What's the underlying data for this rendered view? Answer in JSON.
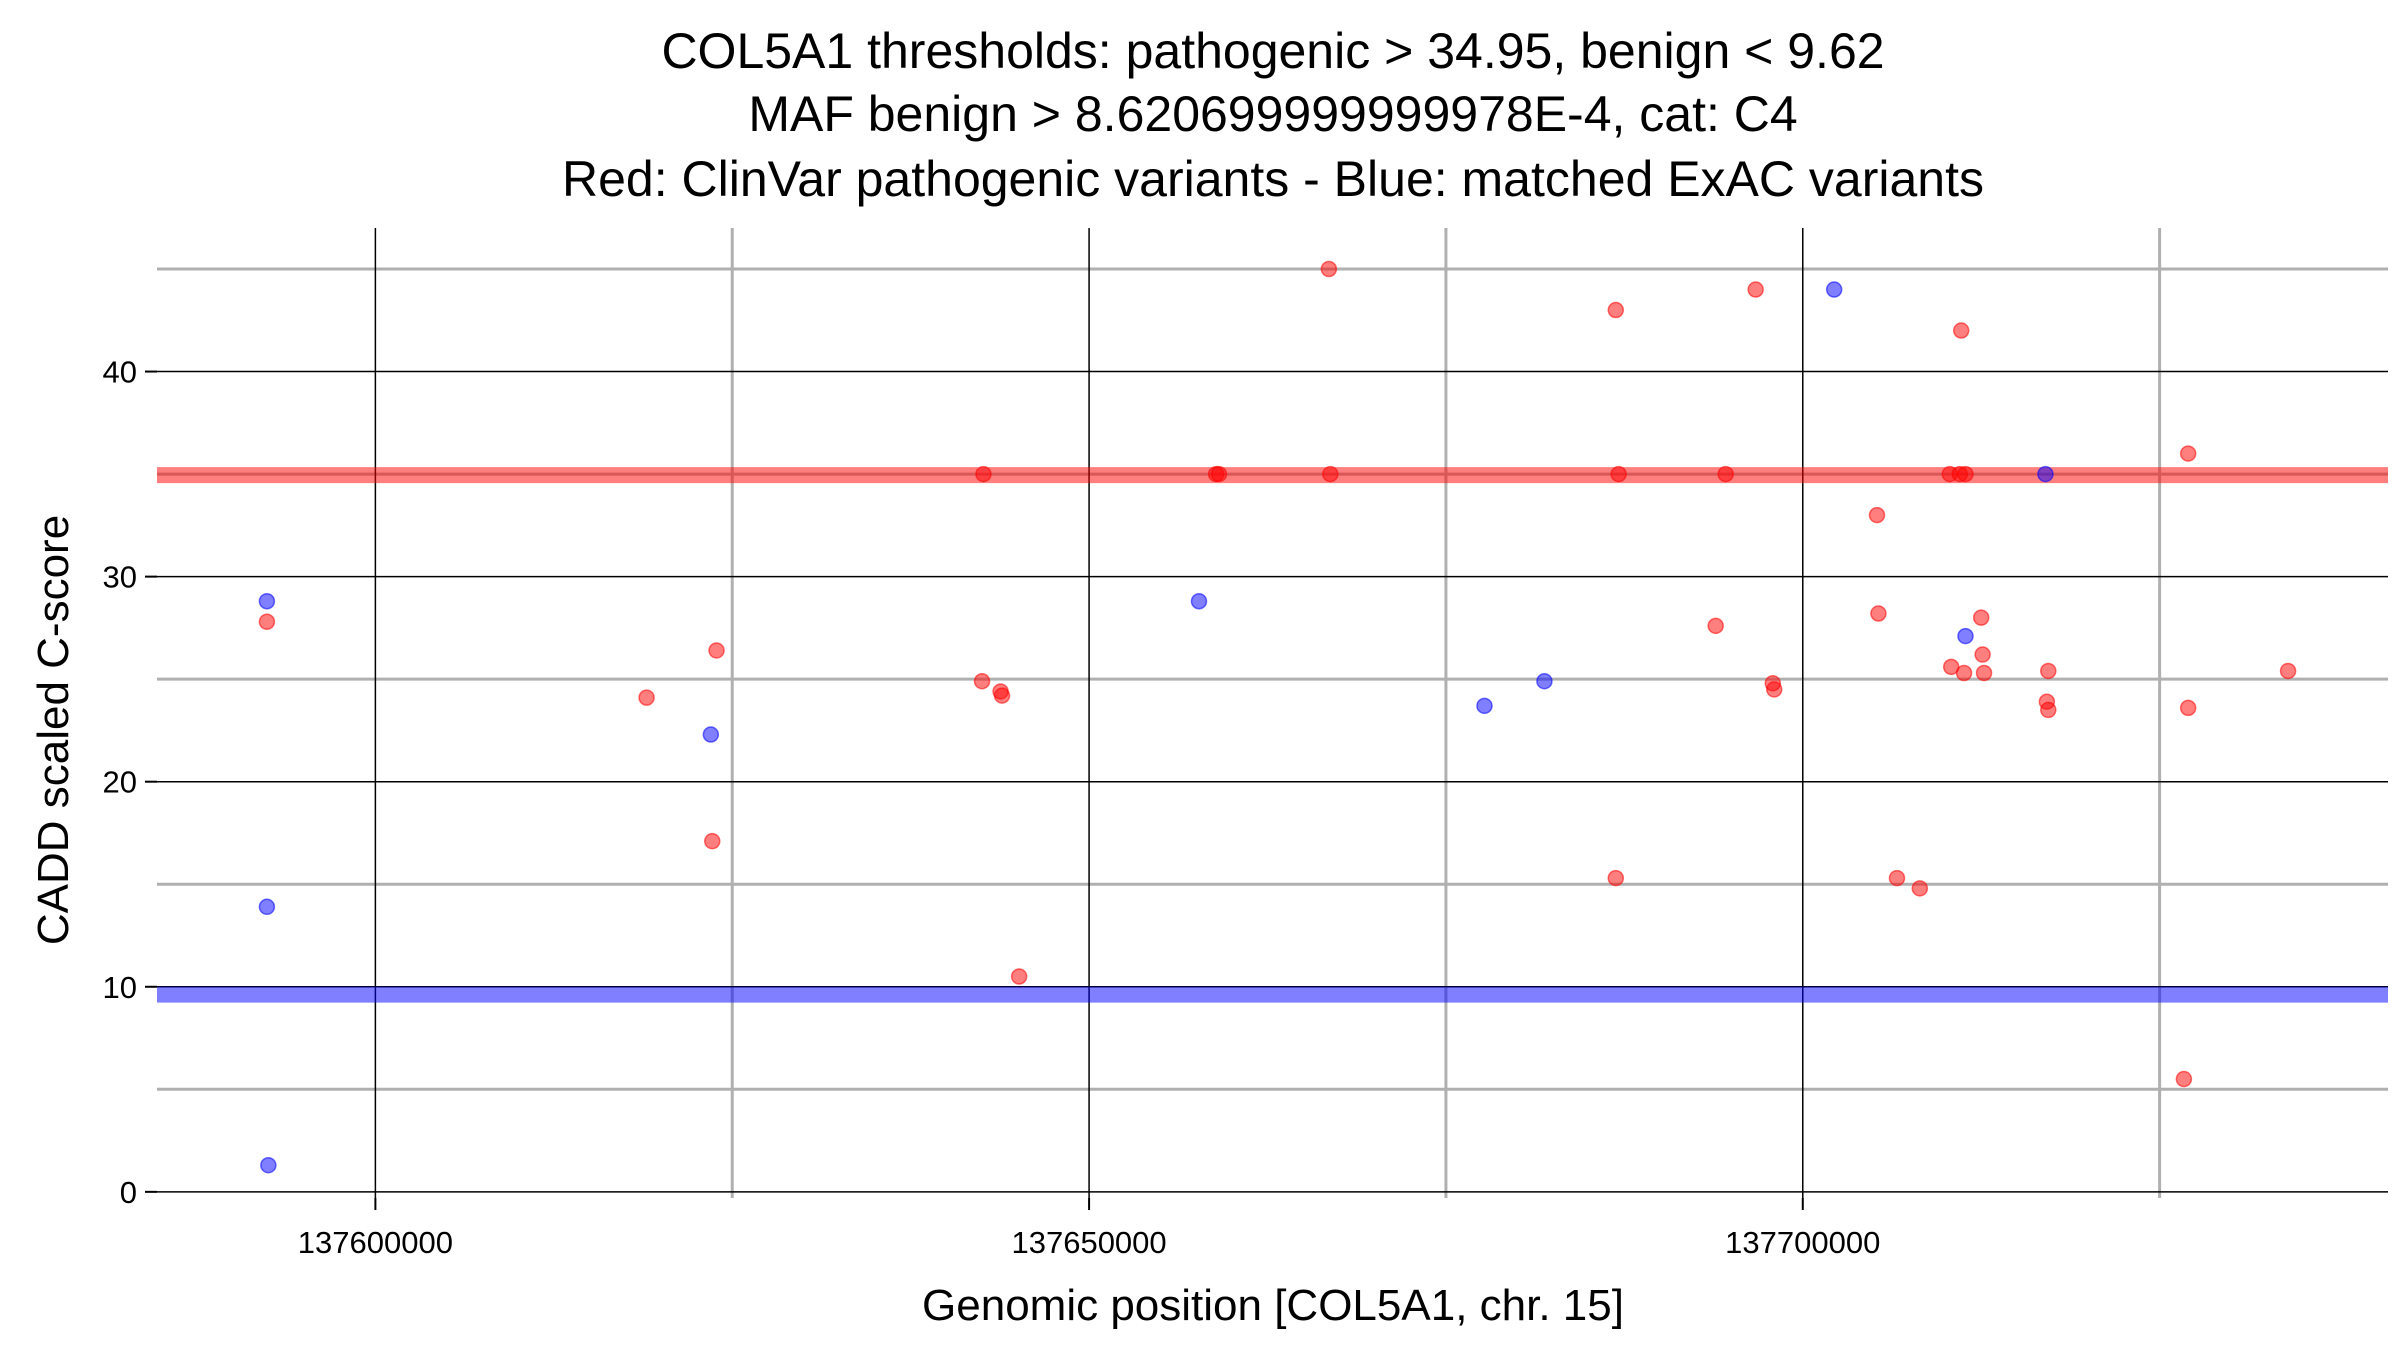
{
  "chart_data": {
    "type": "scatter",
    "title_lines": [
      "COL5A1 thresholds: pathogenic > 34.95, benign < 9.62",
      "MAF benign > 8.620699999999978E-4, cat: C4",
      "Red: ClinVar pathogenic variants - Blue: matched ExAC variants"
    ],
    "xlabel": "Genomic position [COL5A1, chr. 15]",
    "ylabel": "CADD scaled C-score",
    "xlim": [
      137584700,
      137741000
    ],
    "ylim": [
      -0.3,
      47
    ],
    "x_ticks": [
      137600000,
      137650000,
      137700000
    ],
    "x_tick_labels": [
      "137600000",
      "137650000",
      "137700000"
    ],
    "y_ticks": [
      0,
      10,
      20,
      30,
      40
    ],
    "y_tick_labels": [
      "0",
      "10",
      "20",
      "30",
      "40"
    ],
    "x_minor_gridlines": [
      137625000,
      137675000,
      137725000
    ],
    "y_minor_gridlines": [
      5,
      15,
      25,
      35,
      45
    ],
    "grid": true,
    "thresholds": {
      "pathogenic": 34.95,
      "benign": 9.62,
      "pathogenic_color": "#ff0000",
      "benign_color": "#0000ff"
    },
    "series": [
      {
        "color": "#ff0000",
        "points": [
          [
            137592400,
            27.8
          ],
          [
            137619000,
            24.1
          ],
          [
            137623600,
            17.1
          ],
          [
            137623900,
            26.4
          ],
          [
            137642500,
            24.9
          ],
          [
            137642600,
            35.0
          ],
          [
            137643800,
            24.4
          ],
          [
            137643900,
            24.2
          ],
          [
            137645100,
            10.5
          ],
          [
            137658900,
            35.0
          ],
          [
            137659100,
            35.0
          ],
          [
            137666800,
            45.0
          ],
          [
            137666900,
            35.0
          ],
          [
            137686900,
            43.0
          ],
          [
            137686900,
            15.3
          ],
          [
            137687100,
            35.0
          ],
          [
            137693900,
            27.6
          ],
          [
            137694600,
            35.0
          ],
          [
            137696700,
            44.0
          ],
          [
            137697900,
            24.8
          ],
          [
            137698000,
            24.5
          ],
          [
            137705200,
            33.0
          ],
          [
            137705300,
            28.2
          ],
          [
            137706600,
            15.3
          ],
          [
            137708200,
            14.8
          ],
          [
            137710300,
            35.0
          ],
          [
            137710400,
            25.6
          ],
          [
            137711000,
            35.0
          ],
          [
            137711100,
            42.0
          ],
          [
            137711300,
            25.3
          ],
          [
            137711400,
            35.0
          ],
          [
            137712500,
            28.0
          ],
          [
            137712600,
            26.2
          ],
          [
            137712700,
            25.3
          ],
          [
            137717100,
            23.9
          ],
          [
            137717200,
            25.4
          ],
          [
            137717200,
            23.5
          ],
          [
            137727000,
            36.0
          ],
          [
            137727000,
            23.6
          ],
          [
            137726700,
            5.5
          ],
          [
            137734000,
            25.4
          ]
        ]
      },
      {
        "color": "#0000ff",
        "points": [
          [
            137592400,
            28.8
          ],
          [
            137592400,
            13.9
          ],
          [
            137592500,
            1.3
          ],
          [
            137623500,
            22.3
          ],
          [
            137657700,
            28.8
          ],
          [
            137677700,
            23.7
          ],
          [
            137681900,
            24.9
          ],
          [
            137702200,
            44.0
          ],
          [
            137711400,
            27.1
          ],
          [
            137717000,
            35.0
          ]
        ]
      }
    ]
  }
}
